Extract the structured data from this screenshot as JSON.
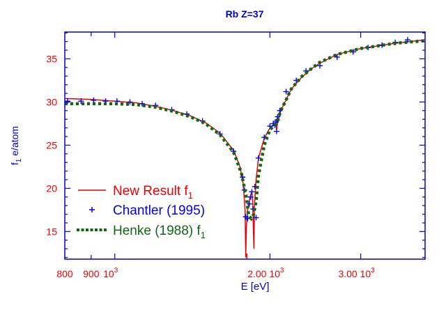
{
  "chart_data": {
    "type": "line",
    "title": "Rb Z=37",
    "xlabel": "E [eV]",
    "ylabel": "f",
    "ylabel_sub": "1",
    "ylabel_unit": " e/atom",
    "x_scale": "log",
    "xlim": [
      800,
      4000
    ],
    "ylim": [
      11.8,
      38.1
    ],
    "grid": false,
    "legend_placement": "bottom-left",
    "x_ticks": [
      {
        "value": 800,
        "label": "800",
        "exp": ""
      },
      {
        "value": 900,
        "label": "900",
        "exp": ""
      },
      {
        "value": 1000,
        "label": "10",
        "exp": "3"
      },
      {
        "value": 2000,
        "label": "2.00 10",
        "exp": "3"
      },
      {
        "value": 3000,
        "label": "3.00 10",
        "exp": "3"
      }
    ],
    "edge_marker": 1804,
    "y_ticks": [
      15,
      20,
      25,
      30,
      35
    ],
    "colors": {
      "axis": "#0000cc",
      "tick_labels": "#ee0000",
      "title": "#0000cc"
    },
    "series": [
      {
        "name": "New Result f",
        "name_sub": "1",
        "style": "solid",
        "color": "#ee0000",
        "x": [
          800,
          900,
          1000,
          1100,
          1200,
          1300,
          1400,
          1500,
          1600,
          1700,
          1750,
          1775,
          1790,
          1795,
          1800,
          1810,
          1830,
          1845,
          1852,
          1858,
          1862,
          1866,
          1880,
          1900,
          1950,
          2000,
          2040,
          2058,
          2062,
          2066,
          2075,
          2100,
          2200,
          2300,
          2400,
          2500,
          2700,
          3000,
          3500,
          4000
        ],
        "y": [
          30.4,
          30.3,
          30.1,
          29.9,
          29.5,
          29.0,
          28.4,
          27.6,
          26.4,
          24.4,
          22.5,
          20.5,
          17.5,
          12.0,
          15.5,
          17.5,
          19.0,
          19.6,
          18.5,
          15.0,
          13.0,
          18.0,
          21.0,
          23.5,
          25.8,
          27.0,
          27.4,
          27.2,
          26.8,
          27.4,
          27.9,
          29.0,
          31.5,
          32.8,
          33.8,
          34.5,
          35.5,
          36.2,
          36.8,
          37.2
        ]
      },
      {
        "name": "Chantler (1995)",
        "style": "cross",
        "color": "#0000ee",
        "x": [
          810,
          860,
          910,
          960,
          1010,
          1070,
          1130,
          1200,
          1290,
          1380,
          1480,
          1600,
          1700,
          1770,
          1785,
          1795,
          1810,
          1825,
          1835,
          1845,
          1855,
          1870,
          1880,
          1900,
          1950,
          2000,
          2030,
          2045,
          2055,
          2060,
          2065,
          2070,
          2090,
          2150,
          2250,
          2350,
          2500,
          2700,
          2900,
          3100,
          3300,
          3500,
          3700
        ],
        "y": [
          30.1,
          30.1,
          30.2,
          30.1,
          30.1,
          30.0,
          29.8,
          29.6,
          29.1,
          28.6,
          27.8,
          26.3,
          24.3,
          21.3,
          19.8,
          16.7,
          16.5,
          18.2,
          19.0,
          19.6,
          17.6,
          20.2,
          16.6,
          23.5,
          25.9,
          27.2,
          27.5,
          27.3,
          27.7,
          26.6,
          27.9,
          28.3,
          29.0,
          31.2,
          32.5,
          33.6,
          34.2,
          35.2,
          35.8,
          36.3,
          36.6,
          36.9,
          37.2
        ]
      },
      {
        "name": "Henke (1988) f",
        "name_sub": "1",
        "style": "dotted",
        "color": "#116611",
        "x": [
          800,
          900,
          1000,
          1100,
          1200,
          1300,
          1400,
          1500,
          1600,
          1700,
          1760,
          1800,
          1820,
          1840,
          1860,
          1880,
          1900,
          1950,
          2000,
          2060,
          2100,
          2200,
          2300,
          2400,
          2500,
          2700,
          3000,
          3500,
          4000
        ],
        "y": [
          29.8,
          29.8,
          29.8,
          29.7,
          29.4,
          28.9,
          28.3,
          27.5,
          26.2,
          24.2,
          21.8,
          19.0,
          16.8,
          16.5,
          17.0,
          18.5,
          21.5,
          25.0,
          26.8,
          27.5,
          29.0,
          31.5,
          32.9,
          33.8,
          34.6,
          35.5,
          36.2,
          36.8,
          37.1
        ]
      }
    ]
  }
}
